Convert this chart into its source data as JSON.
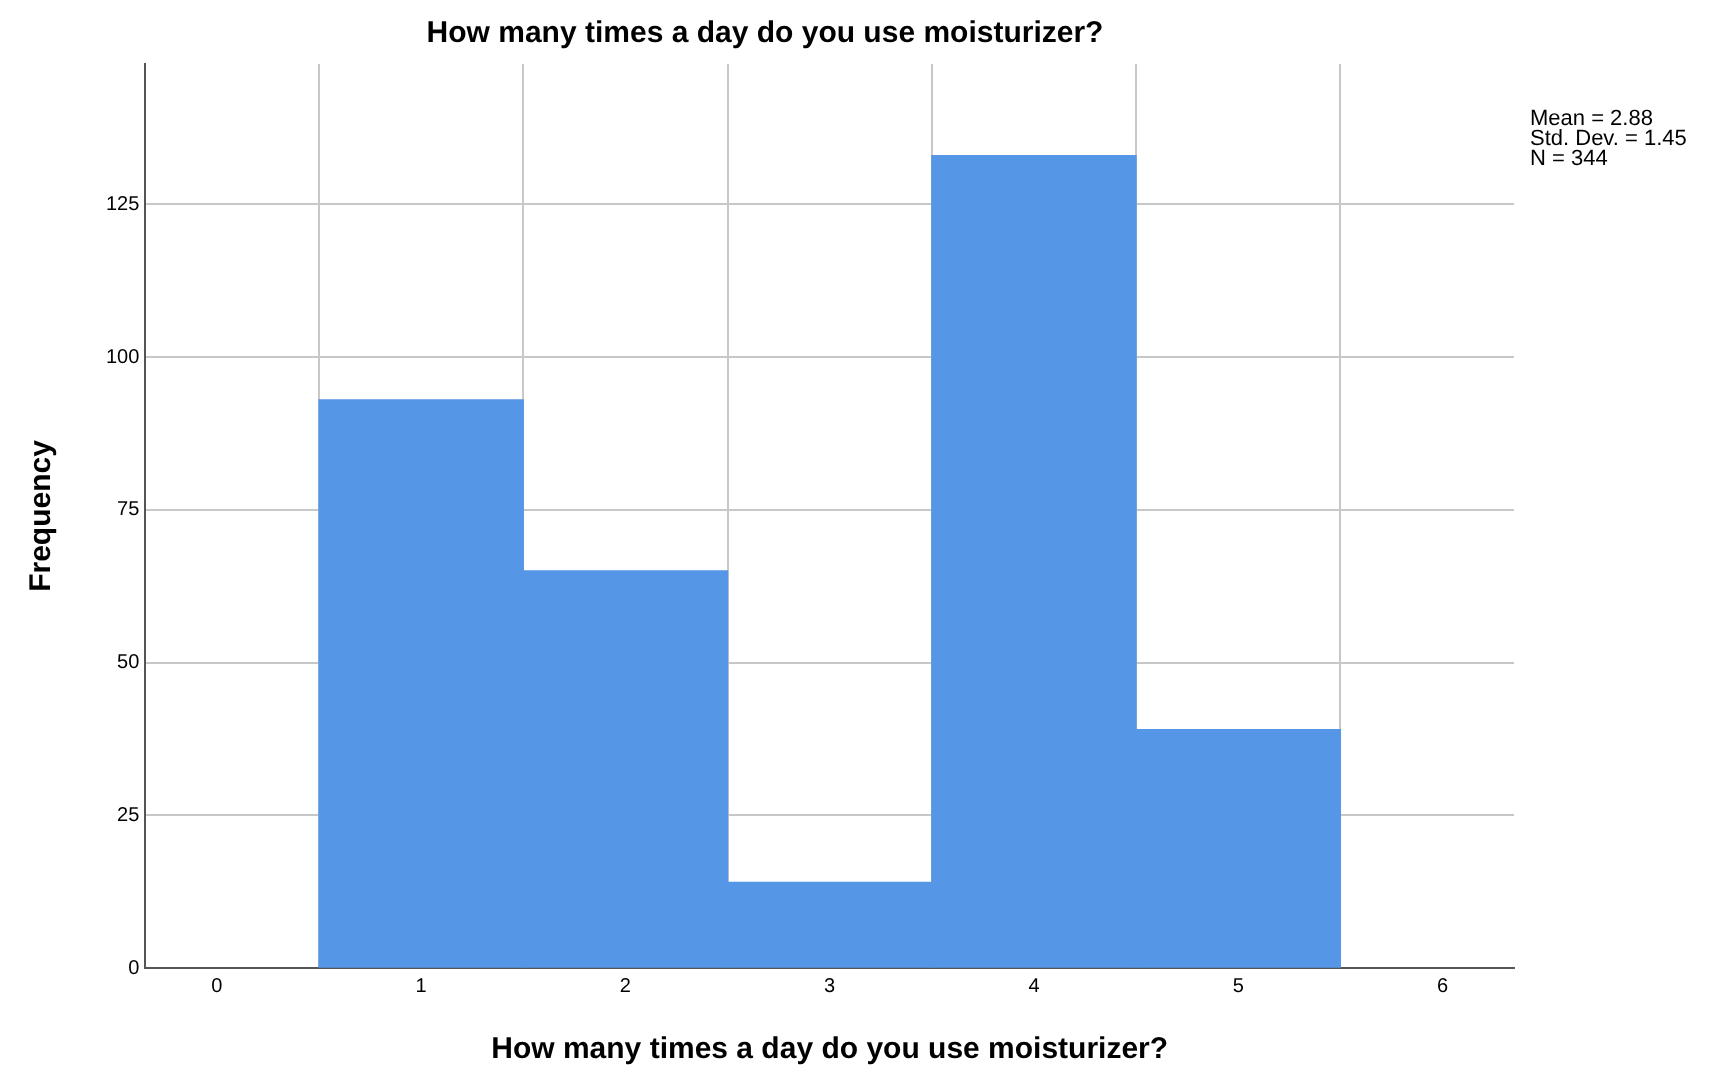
{
  "chart_data": {
    "type": "histogram",
    "title": "How many times a day do you use moisturizer?",
    "xlabel": "How many times a day do you use moisturizer?",
    "ylabel": "Frequency",
    "bins": [
      0.5,
      1.5,
      2.5,
      3.5,
      4.5,
      5.5
    ],
    "values": [
      93,
      65,
      14,
      133,
      39
    ],
    "color": "#5596e6",
    "xlim": [
      -0.35,
      6.35
    ],
    "xticks": [
      0,
      1,
      2,
      3,
      4,
      5,
      6
    ],
    "ylim": [
      0,
      148
    ],
    "yticks": [
      0,
      25,
      50,
      75,
      100,
      125
    ],
    "grid": true,
    "legend": false,
    "annotations": [
      "Mean = 2.88",
      "Std. Dev. = 1.45",
      "N = 344"
    ]
  }
}
